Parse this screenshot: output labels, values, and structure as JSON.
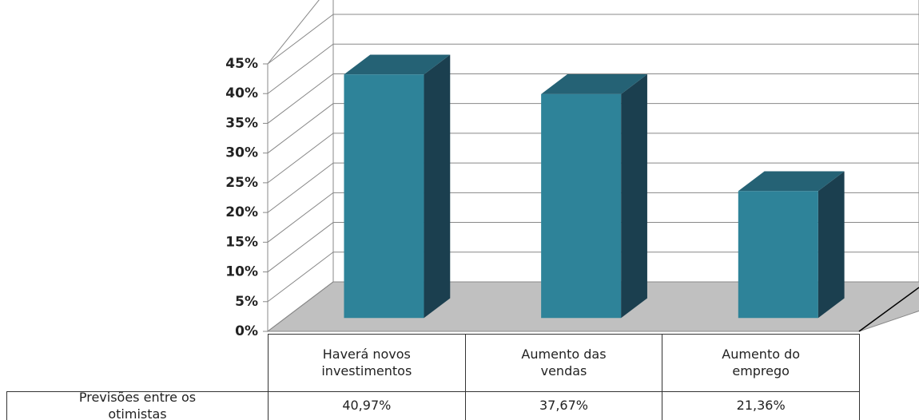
{
  "chart_data": {
    "type": "bar3d",
    "categories": [
      "Haverá novos investimentos",
      "Aumento das vendas",
      "Aumento do emprego"
    ],
    "series": [
      {
        "name": "Previsões entre os otimistas",
        "color": "#2e8399",
        "values": [
          40.97,
          37.67,
          21.36
        ],
        "value_labels": [
          "40,97%",
          "37,67%",
          "21,36%"
        ]
      }
    ],
    "ylim": [
      0,
      45
    ],
    "yticks": [
      {
        "value": 0,
        "label": "0%"
      },
      {
        "value": 5,
        "label": "5%"
      },
      {
        "value": 10,
        "label": "10%"
      },
      {
        "value": 15,
        "label": "15%"
      },
      {
        "value": 20,
        "label": "20%"
      },
      {
        "value": 25,
        "label": "25%"
      },
      {
        "value": 30,
        "label": "30%"
      },
      {
        "value": 35,
        "label": "35%"
      },
      {
        "value": 40,
        "label": "40%"
      },
      {
        "value": 45,
        "label": "45%"
      }
    ],
    "grid": true
  }
}
